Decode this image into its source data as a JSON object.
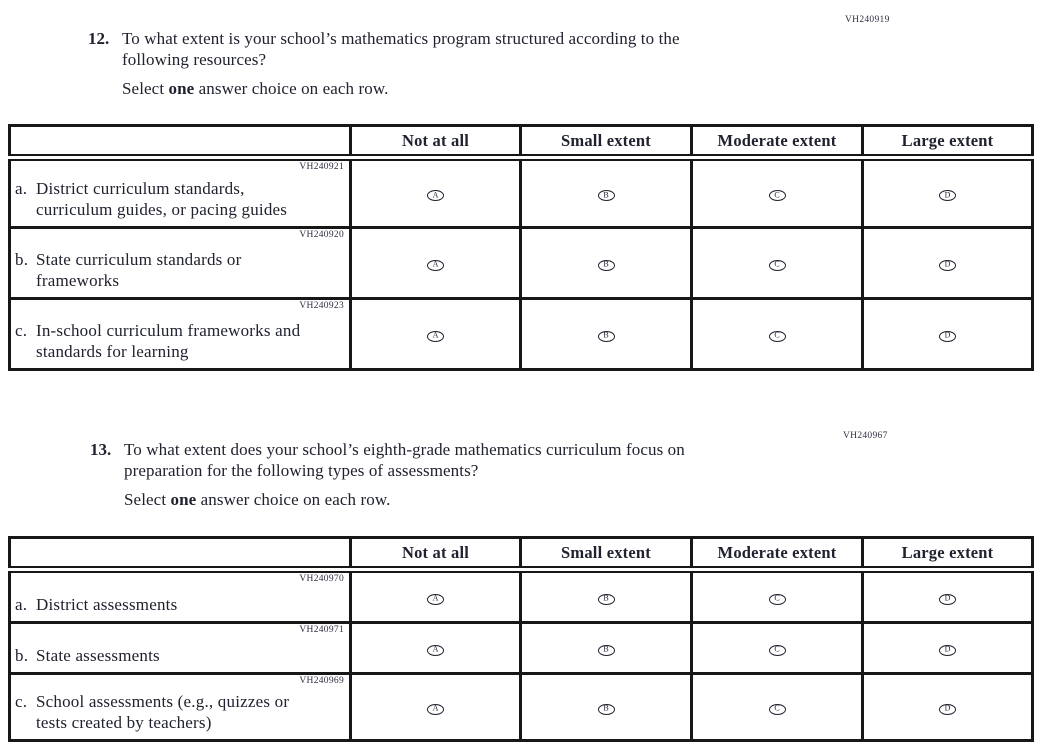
{
  "page": {
    "background": "#ffffff",
    "ink_color": "#20222f",
    "code_color": "#2f2f45",
    "border_color": "#171717"
  },
  "shared": {
    "answer_letters": [
      "A",
      "B",
      "C",
      "D"
    ]
  },
  "q12": {
    "number": "12.",
    "code": "VH240919",
    "line1": "To what extent is your school’s mathematics program structured according to the",
    "line2": "following resources?",
    "select_pre": "Select ",
    "select_bold": "one",
    "select_post": " answer choice on each row.",
    "columns": [
      "Not at all",
      "Small extent",
      "Moderate extent",
      "Large extent"
    ],
    "rows": [
      {
        "code": "VH240921",
        "letter": "a.",
        "line1": "District curriculum standards,",
        "line2": "curriculum guides, or pacing guides"
      },
      {
        "code": "VH240920",
        "letter": "b.",
        "line1": "State curriculum standards or",
        "line2": "frameworks"
      },
      {
        "code": "VH240923",
        "letter": "c.",
        "line1": "In-school curriculum frameworks and",
        "line2": "standards for learning"
      }
    ]
  },
  "q13": {
    "number": "13.",
    "code": "VH240967",
    "line1": "To what extent does your school’s eighth-grade mathematics curriculum focus on",
    "line2": "preparation for the following types of assessments?",
    "select_pre": "Select ",
    "select_bold": "one",
    "select_post": " answer choice on each row.",
    "columns": [
      "Not at all",
      "Small extent",
      "Moderate extent",
      "Large extent"
    ],
    "rows": [
      {
        "code": "VH240970",
        "letter": "a.",
        "line1": "District assessments",
        "line2": ""
      },
      {
        "code": "VH240971",
        "letter": "b.",
        "line1": "State assessments",
        "line2": ""
      },
      {
        "code": "VH240969",
        "letter": "c.",
        "line1": "School assessments (e.g., quizzes or",
        "line2": "tests created by teachers)"
      }
    ]
  }
}
